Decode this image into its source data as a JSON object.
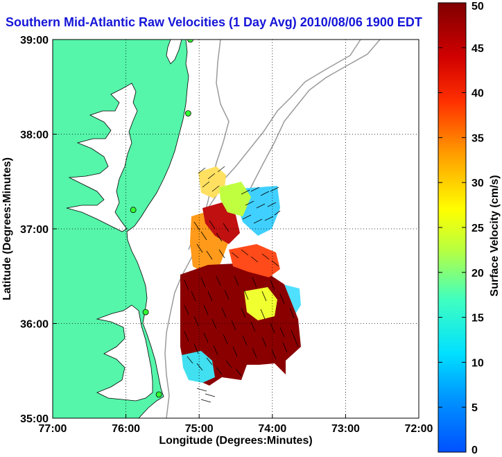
{
  "title": "Southern Mid-Atlantic Raw Velocities (1 Day Avg) 2010/08/06 1900 EDT",
  "map": {
    "x_axis_label": "Longitude (Degrees:Minutes)",
    "y_axis_label": "Latitude (Degrees:Minutes)",
    "x_ticks": [
      {
        "value": -77,
        "label": "77:00"
      },
      {
        "value": -76,
        "label": "76:00"
      },
      {
        "value": -75,
        "label": "75:00"
      },
      {
        "value": -74,
        "label": "74:00"
      },
      {
        "value": -73,
        "label": "73:00"
      },
      {
        "value": -72,
        "label": "72:00"
      }
    ],
    "y_ticks": [
      {
        "value": 35,
        "label": "35:00"
      },
      {
        "value": 36,
        "label": "36:00"
      },
      {
        "value": 37,
        "label": "37:00"
      },
      {
        "value": 38,
        "label": "38:00"
      },
      {
        "value": 39,
        "label": "39:00"
      }
    ],
    "lon_range": [
      -77,
      -72
    ],
    "lat_range": [
      35,
      39
    ],
    "grid": "dotted",
    "land_color": "#55f5aa",
    "bathymetry_color": "#9a9a9a",
    "hf_radar_sites": [
      {
        "lon": -75.12,
        "lat": 39.0
      },
      {
        "lon": -75.15,
        "lat": 38.22
      },
      {
        "lon": -75.9,
        "lat": 37.2
      },
      {
        "lon": -75.73,
        "lat": 36.12
      },
      {
        "lon": -75.55,
        "lat": 35.25
      }
    ]
  },
  "colorbar": {
    "label": "Surface Velocity (cm/s)",
    "range": [
      0,
      50
    ],
    "ticks": [
      {
        "value": 0,
        "label": "0"
      },
      {
        "value": 5,
        "label": "5"
      },
      {
        "value": 10,
        "label": "10"
      },
      {
        "value": 15,
        "label": "15"
      },
      {
        "value": 20,
        "label": "20"
      },
      {
        "value": 25,
        "label": "25"
      },
      {
        "value": 30,
        "label": "30"
      },
      {
        "value": 35,
        "label": "35"
      },
      {
        "value": 40,
        "label": "40"
      },
      {
        "value": 45,
        "label": "45"
      },
      {
        "value": 50,
        "label": "50"
      }
    ]
  }
}
